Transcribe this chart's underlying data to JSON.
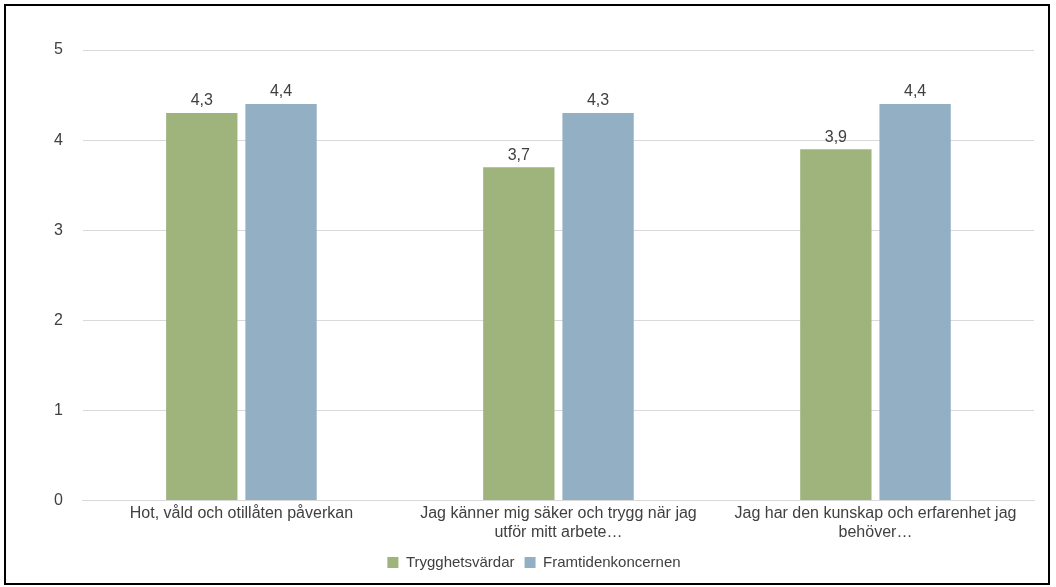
{
  "chart_data": {
    "type": "bar",
    "categories": [
      "Hot, våld och otillåten påverkan",
      "Jag känner mig säker och trygg när jag utför mitt arbete…",
      "Jag har den kunskap och erfarenhet jag behöver…"
    ],
    "series": [
      {
        "name": "Trygghetsvärdar",
        "color": "#9eb47c",
        "values": [
          4.3,
          3.7,
          3.9
        ],
        "value_labels": [
          "4,3",
          "3,7",
          "3,9"
        ]
      },
      {
        "name": "Framtidenkoncernen",
        "color": "#93afc4",
        "values": [
          4.4,
          4.3,
          4.4
        ],
        "value_labels": [
          "4,4",
          "4,3",
          "4,4"
        ]
      }
    ],
    "ylim": [
      0,
      5
    ],
    "yticks": [
      0,
      1,
      2,
      3,
      4,
      5
    ],
    "grid": "y",
    "legend": "bottom"
  }
}
